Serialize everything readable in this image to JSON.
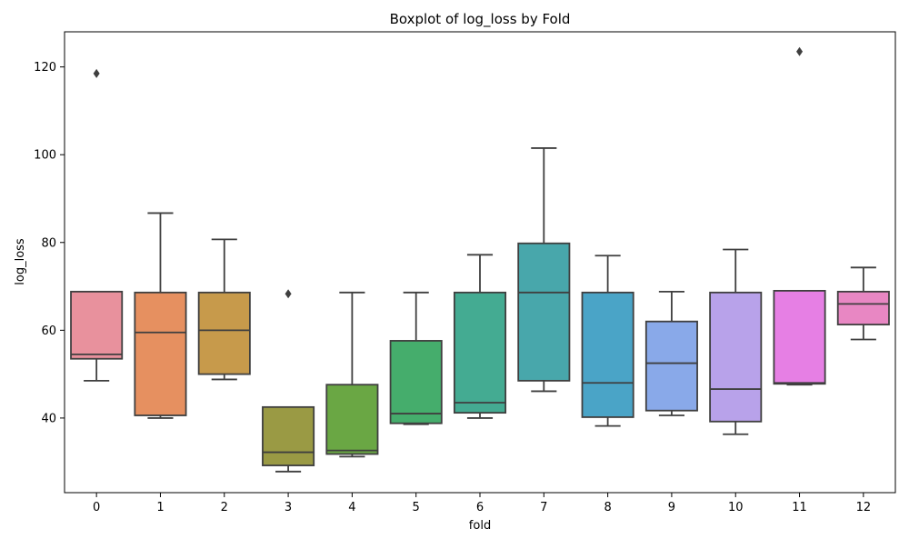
{
  "chart_data": {
    "type": "boxplot",
    "title": "Boxplot of log_loss by Fold",
    "xlabel": "fold",
    "ylabel": "log_loss",
    "categories": [
      "0",
      "1",
      "2",
      "3",
      "4",
      "5",
      "6",
      "7",
      "8",
      "9",
      "10",
      "11",
      "12"
    ],
    "ylim": [
      23,
      128
    ],
    "yticks": [
      40,
      60,
      80,
      100,
      120
    ],
    "grid": false,
    "legend": "none",
    "boxes": [
      {
        "fold": "0",
        "whisker_low": 48.5,
        "q1": 53.5,
        "median": 54.5,
        "q3": 68.8,
        "whisker_high": 68.8,
        "outliers": [
          118.5
        ],
        "color": "#e8919d"
      },
      {
        "fold": "1",
        "whisker_low": 40.0,
        "q1": 40.6,
        "median": 59.5,
        "q3": 68.6,
        "whisker_high": 86.7,
        "outliers": [],
        "color": "#e69060"
      },
      {
        "fold": "2",
        "whisker_low": 48.8,
        "q1": 50.0,
        "median": 60.0,
        "q3": 68.6,
        "whisker_high": 80.7,
        "outliers": [],
        "color": "#c79a4b"
      },
      {
        "fold": "3",
        "whisker_low": 27.8,
        "q1": 29.2,
        "median": 32.2,
        "q3": 42.5,
        "whisker_high": 42.5,
        "outliers": [
          68.3
        ],
        "color": "#9a9a44"
      },
      {
        "fold": "4",
        "whisker_low": 31.2,
        "q1": 31.8,
        "median": 32.6,
        "q3": 47.6,
        "whisker_high": 68.6,
        "outliers": [],
        "color": "#6aa744"
      },
      {
        "fold": "5",
        "whisker_low": 38.6,
        "q1": 38.8,
        "median": 41.0,
        "q3": 57.6,
        "whisker_high": 68.6,
        "outliers": [],
        "color": "#45ad6c"
      },
      {
        "fold": "6",
        "whisker_low": 40.0,
        "q1": 41.2,
        "median": 43.5,
        "q3": 68.6,
        "whisker_high": 77.2,
        "outliers": [],
        "color": "#44ab92"
      },
      {
        "fold": "7",
        "whisker_low": 46.1,
        "q1": 48.5,
        "median": 68.6,
        "q3": 79.8,
        "whisker_high": 101.5,
        "outliers": [],
        "color": "#48a7ab"
      },
      {
        "fold": "8",
        "whisker_low": 38.2,
        "q1": 40.2,
        "median": 48.0,
        "q3": 68.6,
        "whisker_high": 77.0,
        "outliers": [],
        "color": "#4aa4c7"
      },
      {
        "fold": "9",
        "whisker_low": 40.6,
        "q1": 41.7,
        "median": 52.5,
        "q3": 62.0,
        "whisker_high": 68.8,
        "outliers": [],
        "color": "#89a9e9"
      },
      {
        "fold": "10",
        "whisker_low": 36.3,
        "q1": 39.2,
        "median": 46.6,
        "q3": 68.6,
        "whisker_high": 78.4,
        "outliers": [],
        "color": "#b8a2ea"
      },
      {
        "fold": "11",
        "whisker_low": 47.6,
        "q1": 47.8,
        "median": 48.0,
        "q3": 69.0,
        "whisker_high": 69.0,
        "outliers": [
          123.5
        ],
        "color": "#e67fe4"
      },
      {
        "fold": "12",
        "whisker_low": 57.9,
        "q1": 61.3,
        "median": 66.0,
        "q3": 68.8,
        "whisker_high": 74.3,
        "outliers": [],
        "color": "#e887c3"
      }
    ]
  }
}
